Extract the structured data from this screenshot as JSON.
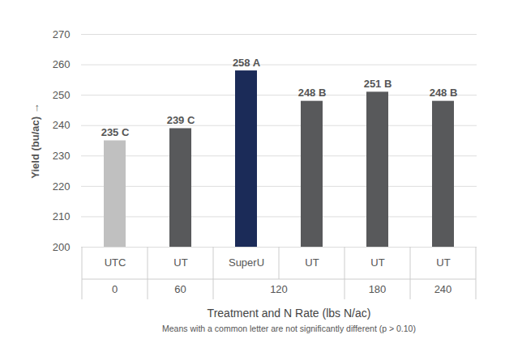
{
  "chart_data": {
    "type": "bar",
    "categories": [
      "UTC",
      "UT",
      "SuperU",
      "UT",
      "UT",
      "UT"
    ],
    "n_rates": [
      0,
      60,
      120,
      120,
      180,
      240
    ],
    "values": [
      235,
      239,
      258,
      248,
      251,
      248
    ],
    "value_labels": [
      "235 C",
      "239 C",
      "258 A",
      "248 B",
      "251 B",
      "248 B"
    ],
    "colors": [
      "#c0c0c0",
      "#58595b",
      "#1b2b58",
      "#58595b",
      "#58595b",
      "#58595b"
    ],
    "xlabel": "Treatment and N Rate (lbs N/ac)",
    "caption": "Means with a common letter are not significantly different (p > 0.10)",
    "ylabel": "Yield (bu/ac)",
    "ylim": [
      200,
      270
    ],
    "yticks": [
      200,
      210,
      220,
      230,
      240,
      250,
      260,
      270
    ],
    "grid": true,
    "data_labels": true
  }
}
